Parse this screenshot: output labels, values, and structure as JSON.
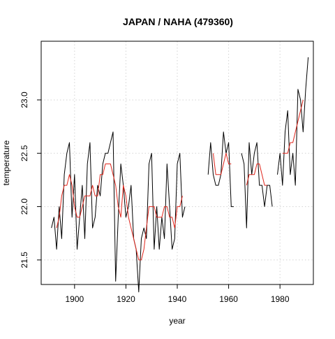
{
  "chart_data": {
    "type": "line",
    "title": "JAPAN / NAHA (479360)",
    "xlabel": "year",
    "ylabel": "temperature",
    "xlim": [
      1887,
      1993
    ],
    "ylim": [
      21.27,
      23.55
    ],
    "xticks": [
      1900,
      1920,
      1940,
      1960,
      1980
    ],
    "yticks": [
      21.5,
      22.0,
      22.5,
      23.0
    ],
    "ytick_labels": [
      "21.5",
      "22.0",
      "22.5",
      "23.0"
    ],
    "grid": true,
    "series": [
      {
        "kind": "raw",
        "color": "#000000",
        "x": [
          1891,
          1892,
          1893,
          1894,
          1895,
          1896,
          1897,
          1898,
          1899,
          1900,
          1901,
          1902,
          1903,
          1904,
          1905,
          1906,
          1907,
          1908,
          1909,
          1910,
          1911,
          1912,
          1913,
          1914,
          1915,
          1916,
          1917,
          1918,
          1919,
          1920,
          1921,
          1922,
          1923,
          1924,
          1925,
          1926,
          1927,
          1928,
          1929,
          1930,
          1931,
          1932,
          1933,
          1934,
          1935,
          1936,
          1937,
          1938,
          1939,
          1940,
          1941,
          1942,
          1943,
          1944,
          null,
          1952,
          1953,
          1954,
          1955,
          1956,
          1957,
          1958,
          1959,
          1960,
          1961,
          1962,
          1963,
          null,
          1965,
          1966,
          1967,
          1968,
          1969,
          1970,
          1971,
          1972,
          1973,
          1974,
          1975,
          1976,
          1977,
          null,
          1979,
          1980,
          1981,
          1982,
          1983,
          1984,
          1985,
          1986,
          1987,
          1988,
          1989,
          1990,
          1991
        ],
        "y": [
          21.8,
          21.9,
          21.6,
          22.0,
          21.7,
          22.3,
          22.5,
          22.6,
          21.9,
          22.3,
          21.6,
          21.9,
          22.2,
          21.7,
          22.4,
          22.6,
          21.8,
          21.9,
          22.2,
          22.1,
          22.4,
          22.5,
          22.5,
          22.6,
          22.7,
          21.3,
          21.9,
          22.4,
          22.2,
          21.9,
          22.0,
          22.2,
          21.7,
          21.6,
          21.2,
          21.7,
          21.8,
          21.7,
          22.4,
          22.5,
          21.6,
          22.0,
          21.6,
          21.9,
          21.7,
          22.4,
          22.0,
          21.6,
          21.7,
          22.4,
          22.5,
          21.9,
          22.0,
          null,
          23.0,
          22.3,
          22.6,
          22.3,
          22.2,
          22.2,
          22.3,
          22.7,
          22.5,
          22.6,
          22.0,
          22.0,
          null,
          21.9,
          22.5,
          22.4,
          21.8,
          22.6,
          22.3,
          22.5,
          22.6,
          22.2,
          22.2,
          22.0,
          22.2,
          22.2,
          22.0,
          null,
          22.3,
          22.5,
          22.2,
          22.7,
          22.9,
          22.3,
          22.5,
          22.2,
          23.1,
          23.0,
          22.7,
          23.1,
          23.4
        ]
      },
      {
        "kind": "smoothed",
        "color": "#e0261c",
        "x": [
          1893,
          1894,
          1895,
          1896,
          1897,
          1898,
          1899,
          1900,
          1901,
          1902,
          1903,
          1904,
          1905,
          1906,
          1907,
          1908,
          1909,
          1910,
          1911,
          1912,
          1913,
          1914,
          1915,
          1916,
          1917,
          1918,
          1919,
          1920,
          1921,
          1922,
          1923,
          1924,
          1925,
          1926,
          1927,
          1928,
          1929,
          1930,
          1931,
          1932,
          1933,
          1934,
          1935,
          1936,
          1937,
          1938,
          1939,
          1940,
          1941,
          1942,
          null,
          1954,
          1955,
          1956,
          1957,
          1958,
          1959,
          1960,
          1961,
          null,
          1967,
          1968,
          1969,
          1970,
          1971,
          1972,
          1973,
          1974,
          1975,
          null,
          1981,
          1982,
          1983,
          1984,
          1985,
          1986,
          1987,
          1988,
          1989
        ],
        "y": [
          21.8,
          21.9,
          22.1,
          22.2,
          22.2,
          22.3,
          22.2,
          22.0,
          21.9,
          21.9,
          22.0,
          22.1,
          22.1,
          22.1,
          22.2,
          22.1,
          22.1,
          22.3,
          22.3,
          22.4,
          22.4,
          22.4,
          22.3,
          22.2,
          22.0,
          21.9,
          22.2,
          22.1,
          21.9,
          21.8,
          21.7,
          21.6,
          21.5,
          21.5,
          21.6,
          21.8,
          22.0,
          22.0,
          22.0,
          21.9,
          21.9,
          21.9,
          22.0,
          22.0,
          21.9,
          21.9,
          21.8,
          22.0,
          22.0,
          22.1,
          null,
          22.5,
          22.3,
          22.3,
          22.3,
          22.4,
          22.5,
          22.4,
          22.4,
          null,
          22.2,
          22.3,
          22.3,
          22.3,
          22.4,
          22.4,
          22.3,
          22.2,
          22.2,
          null,
          22.5,
          22.5,
          22.5,
          22.6,
          22.6,
          22.7,
          22.8,
          22.9,
          23.0
        ]
      }
    ]
  }
}
